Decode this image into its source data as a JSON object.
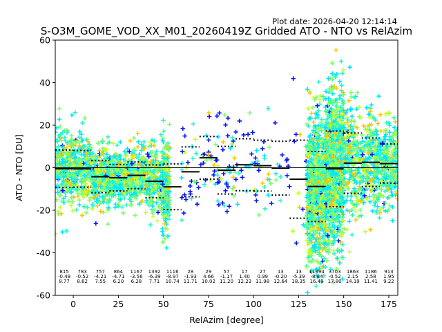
{
  "chart_data": {
    "type": "scatter",
    "title": "S-O3M_GOME_VOD_XX_M01_20260419Z Gridded ATO - NTO vs RelAzim",
    "plot_date": "Plot date: 2026-04-20 12:14:14",
    "xlabel": "RelAzim [degree]",
    "ylabel": "ATO - NTO [DU]",
    "xlim": [
      -10,
      180
    ],
    "ylim": [
      -60,
      60
    ],
    "xticks": [
      0,
      25,
      50,
      75,
      100,
      125,
      150,
      175
    ],
    "yticks": [
      -60,
      -40,
      -20,
      0,
      20,
      40,
      60
    ],
    "marker": "plus",
    "colors": {
      "cyan": "#00e5ff",
      "teal": "#2af5c8",
      "lightgreen": "#7dff6a",
      "yellow": "#c8ff2a",
      "orange": "#ffc400",
      "blue": "#0a14ff"
    },
    "bins": [
      {
        "center": -5,
        "count": "815",
        "mean": "-0.48",
        "std": "8.77",
        "density": "high",
        "mean_value": -0.48,
        "std_value": 8.77
      },
      {
        "center": 5,
        "count": "783",
        "mean": "-0.52",
        "std": "8.62",
        "density": "high",
        "mean_value": -0.52,
        "std_value": 8.62
      },
      {
        "center": 15,
        "count": "757",
        "mean": "-4.21",
        "std": "7.55",
        "density": "high",
        "mean_value": -4.21,
        "std_value": 7.55
      },
      {
        "center": 25,
        "count": "864",
        "mean": "-4.71",
        "std": "6.20",
        "density": "high",
        "mean_value": -4.71,
        "std_value": 6.2
      },
      {
        "center": 35,
        "count": "1167",
        "mean": "-3.56",
        "std": "6.28",
        "density": "high",
        "mean_value": -3.56,
        "std_value": 6.28
      },
      {
        "center": 45,
        "count": "1392",
        "mean": "-6.39",
        "std": "7.71",
        "density": "high",
        "mean_value": -6.39,
        "std_value": 7.71
      },
      {
        "center": 55,
        "count": "1116",
        "mean": "-8.97",
        "std": "10.74",
        "density": "edge",
        "mean_value": -8.97,
        "std_value": 10.74
      },
      {
        "center": 65,
        "count": "28",
        "mean": "-1.93",
        "std": "11.71",
        "density": "low",
        "mean_value": -1.93,
        "std_value": 11.71
      },
      {
        "center": 75,
        "count": "29",
        "mean": "4.66",
        "std": "10.02",
        "density": "low",
        "mean_value": 4.66,
        "std_value": 10.02
      },
      {
        "center": 85,
        "count": "57",
        "mean": "-1.17",
        "std": "11.20",
        "density": "low",
        "mean_value": -1.17,
        "std_value": 11.2
      },
      {
        "center": 95,
        "count": "17",
        "mean": "1.40",
        "std": "12.23",
        "density": "low",
        "mean_value": 1.4,
        "std_value": 12.23
      },
      {
        "center": 105,
        "count": "27",
        "mean": "0.99",
        "std": "11.98",
        "density": "low",
        "mean_value": 0.99,
        "std_value": 11.98
      },
      {
        "center": 115,
        "count": "13",
        "mean": "-0.20",
        "std": "12.64",
        "density": "low",
        "mean_value": -0.2,
        "std_value": 12.64
      },
      {
        "center": 125,
        "count": "13",
        "mean": "-5.39",
        "std": "18.35",
        "density": "low",
        "mean_value": -5.39,
        "std_value": 18.35
      },
      {
        "center": 135,
        "count": "11394",
        "mean": "-8.84",
        "std": "16.49",
        "density": "huge",
        "mean_value": -8.84,
        "std_value": 16.49
      },
      {
        "center": 145,
        "count": "3703",
        "mean": "-0.52",
        "std": "17.80",
        "density": "huge",
        "mean_value": -0.52,
        "std_value": 17.8
      },
      {
        "center": 155,
        "count": "1863",
        "mean": "2.15",
        "std": "14.19",
        "density": "high",
        "mean_value": 2.15,
        "std_value": 14.19
      },
      {
        "center": 165,
        "count": "1186",
        "mean": "2.58",
        "std": "11.41",
        "density": "high",
        "mean_value": 2.58,
        "std_value": 11.41
      },
      {
        "center": 175,
        "count": "913",
        "mean": "1.95",
        "std": "9.22",
        "density": "high",
        "mean_value": 1.95,
        "std_value": 9.22
      }
    ]
  }
}
